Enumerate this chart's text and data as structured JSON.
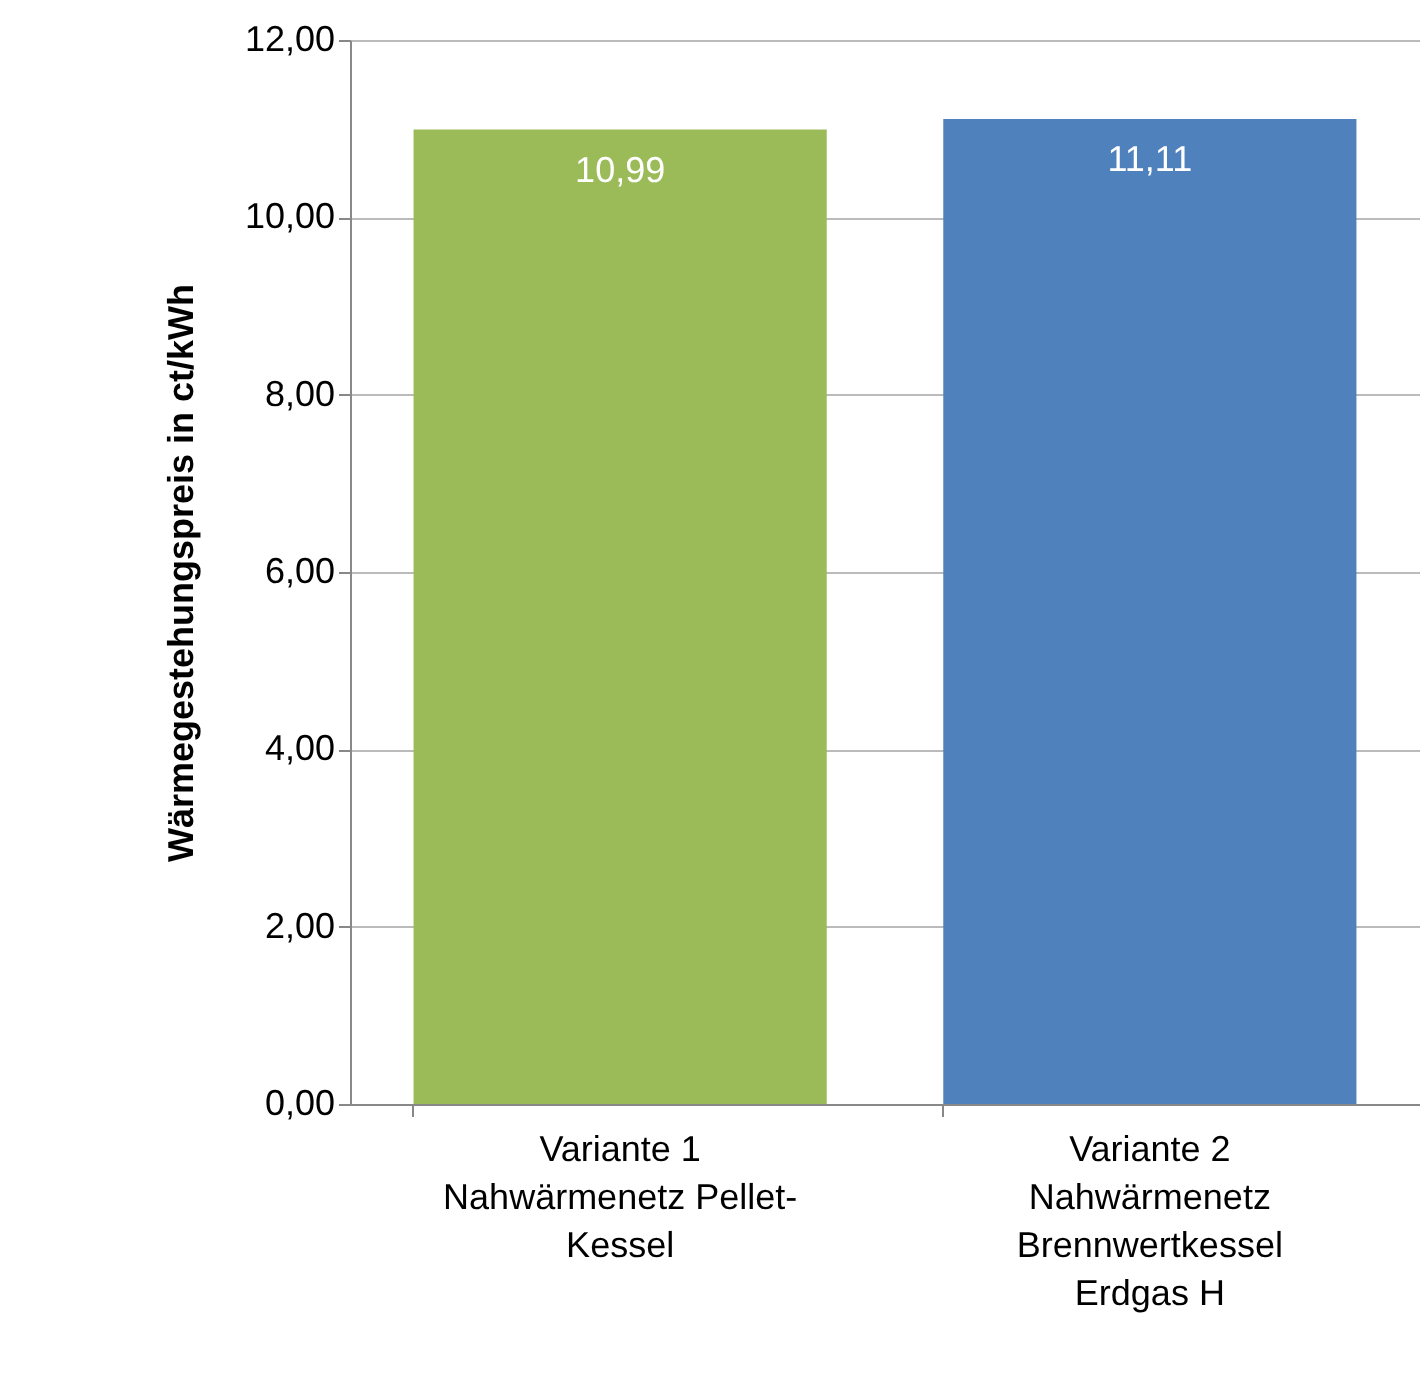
{
  "chart_data": {
    "type": "bar",
    "ylabel": "Wärmegestehungspreis in ct/kWh",
    "categories": [
      "Variante 1\nNahwärmenetz Pellet-\nKessel",
      "Variante 2\nNahwärmenetz\nBrennwertkessel\nErdgas H"
    ],
    "values": [
      10.99,
      11.11
    ],
    "colors": [
      "#9bbb59",
      "#4f81bd"
    ],
    "value_labels": [
      "10,99",
      "11,11"
    ],
    "ylim": [
      0,
      12
    ],
    "yticks": [
      {
        "value": 0,
        "label": "0,00"
      },
      {
        "value": 2,
        "label": "2,00"
      },
      {
        "value": 4,
        "label": "4,00"
      },
      {
        "value": 6,
        "label": "6,00"
      },
      {
        "value": 8,
        "label": "8,00"
      },
      {
        "value": 10,
        "label": "10,00"
      },
      {
        "value": 12,
        "label": "12,00"
      }
    ],
    "grid": "y"
  }
}
